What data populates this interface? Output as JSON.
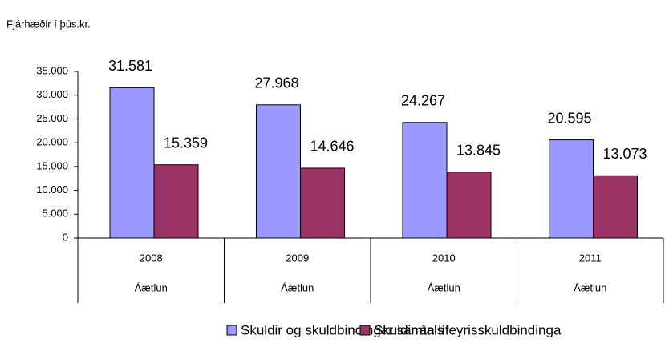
{
  "chart_data": {
    "type": "bar",
    "title": "Fjárhæðir í þús.kr.",
    "categories": [
      "2008",
      "2009",
      "2010",
      "2011"
    ],
    "subcategories": [
      "Áætlun",
      "Áætlun",
      "Áætlun",
      "Áætlun"
    ],
    "series": [
      {
        "name": "Skuldir og skuldbindingar samtals",
        "color": "#9999ff",
        "values": [
          31581,
          27968,
          24267,
          20595
        ],
        "value_labels": [
          "31.581",
          "27.968",
          "24.267",
          "20.595"
        ]
      },
      {
        "name": "Skuldir án lífeyrisskuldbindinga",
        "color": "#993366",
        "values": [
          15359,
          14646,
          13845,
          13073
        ],
        "value_labels": [
          "15.359",
          "14.646",
          "13.845",
          "13.073"
        ]
      }
    ],
    "ylim": [
      0,
      35000
    ],
    "yticks": [
      0,
      {
        "value": 5000,
        "label": "5.000"
      },
      {
        "value": 10000,
        "label": "10.000"
      },
      {
        "value": 15000,
        "label": "15.000"
      },
      {
        "value": 20000,
        "label": "20.000"
      },
      {
        "value": 25000,
        "label": "25.000"
      },
      {
        "value": 30000,
        "label": "30.000"
      },
      {
        "value": 35000,
        "label": "35.000"
      }
    ],
    "legend": "bottom"
  }
}
